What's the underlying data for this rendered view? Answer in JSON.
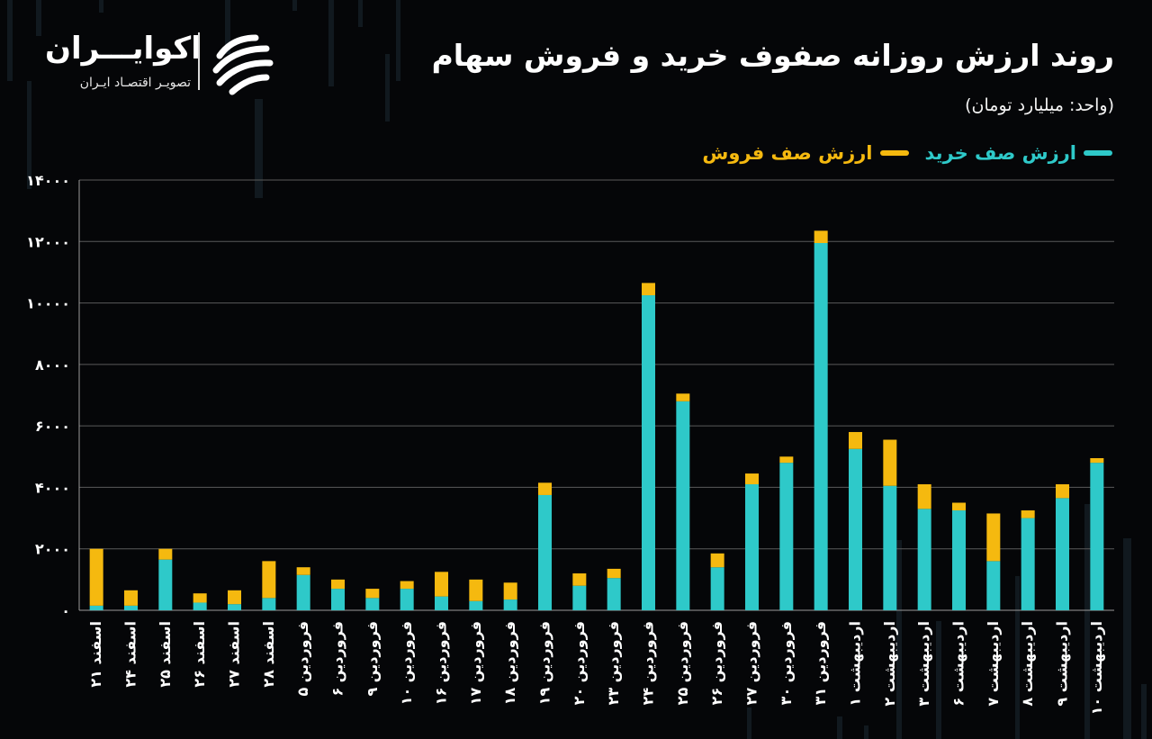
{
  "brand": {
    "name": "اکوایـــران",
    "tagline": "تصویـر اقتصـاد ایـران"
  },
  "header": {
    "title": "روند ارزش روزانه صفوف خرید و فروش سهام",
    "unit": "(واحد: میلیارد تومان)"
  },
  "legend": {
    "buy_label": "ارزش صف خرید",
    "sell_label": "ارزش صف فروش"
  },
  "colors": {
    "buy": "#2EC9C9",
    "sell": "#F5B90F",
    "background": "#050608",
    "grid": "#5a5a5a"
  },
  "chart_data": {
    "type": "bar",
    "stacked": true,
    "ylim": [
      0,
      14000
    ],
    "yticks": [
      0,
      2000,
      4000,
      6000,
      8000,
      10000,
      12000,
      14000
    ],
    "ytick_labels": [
      "۰",
      "۲۰۰۰",
      "۴۰۰۰",
      "۶۰۰۰",
      "۸۰۰۰",
      "۱۰۰۰۰",
      "۱۲۰۰۰",
      "۱۴۰۰۰"
    ],
    "grid": true,
    "legend_position": "top-right",
    "categories": [
      "۲۱ اسفند",
      "۲۴ اسفند",
      "۲۵ اسفند",
      "۲۶ اسفند",
      "۲۷ اسفند",
      "۲۸ اسفند",
      "۵ فروردین",
      "۶ فروردین",
      "۹ فروردین",
      "۱۰ فروردین",
      "۱۶ فروردین",
      "۱۷ فروردین",
      "۱۸ فروردین",
      "۱۹ فروردین",
      "۲۰ فروردین",
      "۲۳ فروردین",
      "۲۴ فروردین",
      "۲۵ فروردین",
      "۲۶ فروردین",
      "۲۷ فروردین",
      "۳۰ فروردین",
      "۳۱ فروردین",
      "۱ اردیبهشت",
      "۲ اردیبهشت",
      "۳ اردیبهشت",
      "۶ اردیبهشت",
      "۷ اردیبهشت",
      "۸ اردیبهشت",
      "۹ اردیبهشت",
      "۱۰ اردیبهشت"
    ],
    "series": [
      {
        "name": "ارزش صف خرید",
        "values": [
          150,
          150,
          1650,
          250,
          200,
          400,
          1150,
          700,
          400,
          700,
          450,
          300,
          350,
          3750,
          800,
          1050,
          10250,
          6800,
          1400,
          4100,
          4800,
          11950,
          5250,
          4050,
          3300,
          3250,
          1600,
          3000,
          3650,
          4800
        ]
      },
      {
        "name": "ارزش صف فروش",
        "values": [
          1850,
          500,
          350,
          300,
          450,
          1200,
          250,
          300,
          300,
          250,
          800,
          700,
          550,
          400,
          400,
          300,
          400,
          250,
          450,
          350,
          200,
          400,
          550,
          1500,
          800,
          250,
          1550,
          250,
          450,
          150
        ]
      }
    ]
  }
}
